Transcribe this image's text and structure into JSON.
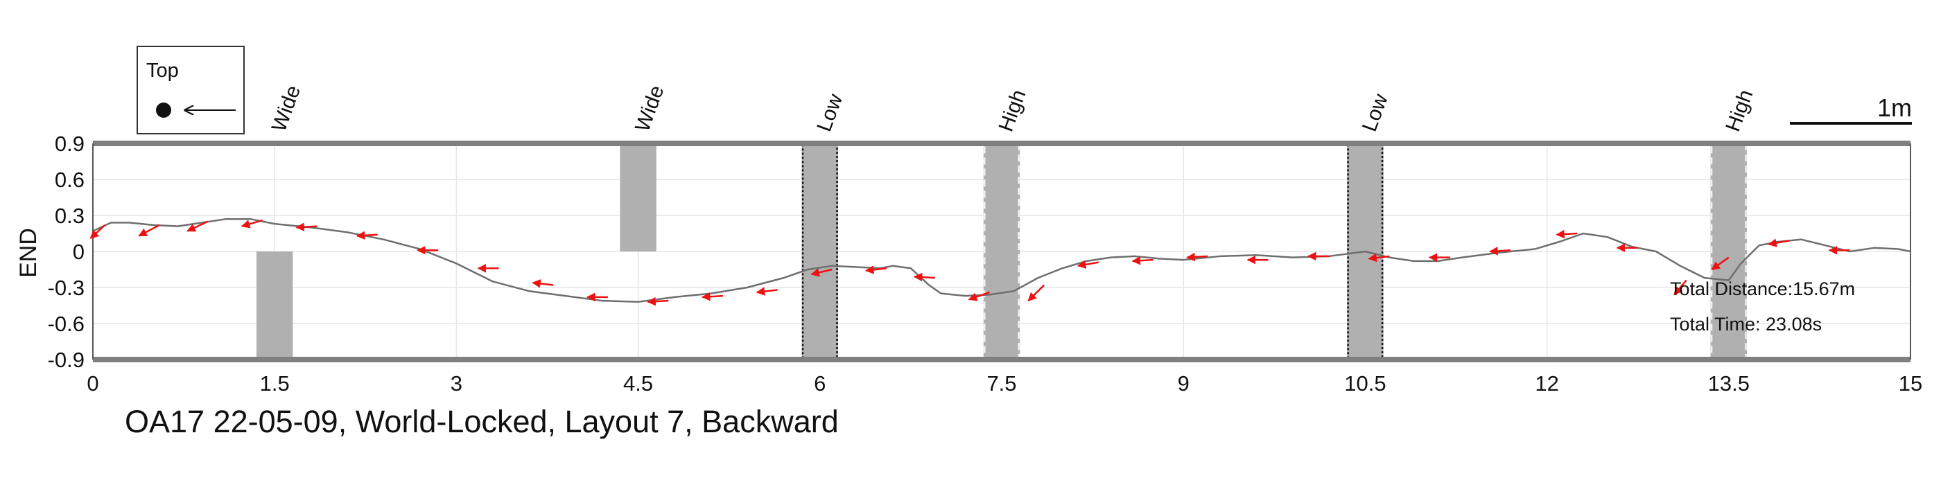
{
  "chart_data": {
    "type": "line",
    "title": "OA17 22-05-09, World-Locked, Layout 7, Backward",
    "ylabel": "END",
    "xlabel": "",
    "xlim": [
      0,
      15
    ],
    "ylim": [
      -0.9,
      0.9
    ],
    "xticks": [
      "0",
      "1.5",
      "3",
      "4.5",
      "6",
      "7.5",
      "9",
      "10.5",
      "12",
      "13.5",
      "15"
    ],
    "yticks": [
      "0.9",
      "0.6",
      "0.3",
      "0",
      "-0.3",
      "-0.6",
      "-0.9"
    ],
    "grid": true,
    "colors": {
      "path": "#6e6e6e",
      "arrows": "#ee1111",
      "obstacle": "#b0b0b0",
      "frame": "#808080"
    },
    "legend": {
      "title": "Top",
      "placement": "top-left",
      "icon": "dot-with-left-arrow"
    },
    "scale_bar": {
      "label": "1m",
      "length_m": 1
    },
    "summary": {
      "distance": "Total Distance:15.67m",
      "time": "Total Time: 23.08s"
    },
    "obstacles": [
      {
        "label": "Wide",
        "x0": 1.35,
        "x1": 1.65,
        "y0": -0.9,
        "y1": 0,
        "style": "plain"
      },
      {
        "label": "Wide",
        "x0": 4.35,
        "x1": 4.65,
        "y0": 0,
        "y1": 0.9,
        "style": "plain"
      },
      {
        "label": "Low",
        "x0": 5.85,
        "x1": 6.15,
        "y0": -0.9,
        "y1": 0.9,
        "style": "dotted-black"
      },
      {
        "label": "High",
        "x0": 7.35,
        "x1": 7.65,
        "y0": -0.9,
        "y1": 0.9,
        "style": "dashed-white"
      },
      {
        "label": "Low",
        "x0": 10.35,
        "x1": 10.65,
        "y0": -0.9,
        "y1": 0.9,
        "style": "dotted-black"
      },
      {
        "label": "High",
        "x0": 13.35,
        "x1": 13.65,
        "y0": -0.9,
        "y1": 0.9,
        "style": "dashed-white"
      }
    ],
    "series": [
      {
        "x": [
          0,
          0.15,
          0.3,
          0.5,
          0.7,
          0.9,
          1.1,
          1.3,
          1.5,
          1.8,
          2.1,
          2.4,
          2.7,
          3.0,
          3.3,
          3.6,
          3.9,
          4.2,
          4.5,
          4.8,
          5.1,
          5.4,
          5.7,
          5.9,
          6.1,
          6.3,
          6.5,
          6.6,
          6.75,
          6.9,
          7.0,
          7.2,
          7.4,
          7.6,
          7.8,
          8.0,
          8.2,
          8.4,
          8.6,
          8.8,
          9.0,
          9.3,
          9.6,
          9.9,
          10.2,
          10.5,
          10.7,
          10.9,
          11.1,
          11.3,
          11.6,
          11.9,
          12.1,
          12.3,
          12.5,
          12.7,
          12.9,
          13.1,
          13.3,
          13.5,
          13.6,
          13.75,
          13.9,
          14.1,
          14.3,
          14.5,
          14.7,
          14.9,
          15.0
        ],
        "y": [
          0.17,
          0.24,
          0.24,
          0.22,
          0.21,
          0.24,
          0.27,
          0.27,
          0.23,
          0.2,
          0.16,
          0.1,
          0.02,
          -0.1,
          -0.25,
          -0.33,
          -0.37,
          -0.41,
          -0.42,
          -0.38,
          -0.35,
          -0.3,
          -0.22,
          -0.15,
          -0.12,
          -0.13,
          -0.14,
          -0.12,
          -0.14,
          -0.28,
          -0.35,
          -0.37,
          -0.36,
          -0.33,
          -0.22,
          -0.14,
          -0.08,
          -0.05,
          -0.04,
          -0.06,
          -0.07,
          -0.04,
          -0.03,
          -0.05,
          -0.04,
          0.0,
          -0.05,
          -0.08,
          -0.08,
          -0.05,
          -0.01,
          0.02,
          0.08,
          0.15,
          0.12,
          0.04,
          0.0,
          -0.12,
          -0.22,
          -0.24,
          -0.1,
          0.05,
          0.08,
          0.1,
          0.05,
          0.0,
          0.03,
          0.02,
          0.0
        ]
      }
    ],
    "arrows": [
      {
        "x": 0.1,
        "y": 0.22,
        "dx": -0.12,
        "dy": -0.11
      },
      {
        "x": 0.55,
        "y": 0.22,
        "dx": -0.17,
        "dy": -0.09
      },
      {
        "x": 0.95,
        "y": 0.25,
        "dx": -0.17,
        "dy": -0.08
      },
      {
        "x": 1.4,
        "y": 0.26,
        "dx": -0.17,
        "dy": -0.05
      },
      {
        "x": 1.85,
        "y": 0.21,
        "dx": -0.17,
        "dy": -0.01
      },
      {
        "x": 2.35,
        "y": 0.14,
        "dx": -0.17,
        "dy": -0.01
      },
      {
        "x": 2.85,
        "y": 0.01,
        "dx": -0.17,
        "dy": 0.0
      },
      {
        "x": 3.35,
        "y": -0.14,
        "dx": -0.17,
        "dy": 0.0
      },
      {
        "x": 3.8,
        "y": -0.28,
        "dx": -0.17,
        "dy": 0.02
      },
      {
        "x": 4.25,
        "y": -0.38,
        "dx": -0.17,
        "dy": 0.0
      },
      {
        "x": 4.75,
        "y": -0.41,
        "dx": -0.17,
        "dy": -0.01
      },
      {
        "x": 5.2,
        "y": -0.37,
        "dx": -0.17,
        "dy": -0.01
      },
      {
        "x": 5.65,
        "y": -0.32,
        "dx": -0.17,
        "dy": -0.02
      },
      {
        "x": 6.1,
        "y": -0.15,
        "dx": -0.17,
        "dy": -0.04
      },
      {
        "x": 6.55,
        "y": -0.14,
        "dx": -0.17,
        "dy": -0.02
      },
      {
        "x": 6.95,
        "y": -0.22,
        "dx": -0.17,
        "dy": 0.01
      },
      {
        "x": 7.4,
        "y": -0.34,
        "dx": -0.17,
        "dy": -0.06
      },
      {
        "x": 7.85,
        "y": -0.28,
        "dx": -0.13,
        "dy": -0.13
      },
      {
        "x": 8.3,
        "y": -0.09,
        "dx": -0.17,
        "dy": -0.03
      },
      {
        "x": 8.75,
        "y": -0.07,
        "dx": -0.17,
        "dy": -0.01
      },
      {
        "x": 9.2,
        "y": -0.04,
        "dx": -0.17,
        "dy": -0.01
      },
      {
        "x": 9.7,
        "y": -0.07,
        "dx": -0.17,
        "dy": 0.0
      },
      {
        "x": 10.2,
        "y": -0.04,
        "dx": -0.17,
        "dy": 0.0
      },
      {
        "x": 10.7,
        "y": -0.04,
        "dx": -0.17,
        "dy": -0.02
      },
      {
        "x": 11.2,
        "y": -0.05,
        "dx": -0.17,
        "dy": 0.0
      },
      {
        "x": 11.7,
        "y": 0.01,
        "dx": -0.17,
        "dy": -0.01
      },
      {
        "x": 12.25,
        "y": 0.15,
        "dx": -0.17,
        "dy": -0.01
      },
      {
        "x": 12.75,
        "y": 0.03,
        "dx": -0.17,
        "dy": 0.0
      },
      {
        "x": 13.15,
        "y": -0.24,
        "dx": -0.1,
        "dy": -0.12
      },
      {
        "x": 13.5,
        "y": -0.05,
        "dx": -0.14,
        "dy": -0.1
      },
      {
        "x": 14.0,
        "y": 0.09,
        "dx": -0.17,
        "dy": -0.03
      },
      {
        "x": 14.5,
        "y": 0.01,
        "dx": -0.17,
        "dy": 0.0
      }
    ]
  }
}
